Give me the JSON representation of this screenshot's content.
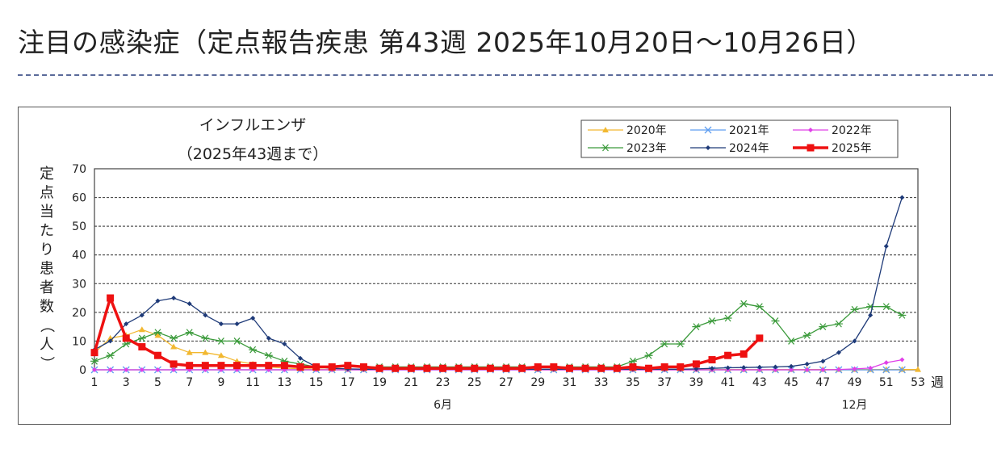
{
  "page": {
    "title": "注目の感染症（定点報告疾患 第43週 2025年10月20日〜10月26日）"
  },
  "chart_data": {
    "type": "line",
    "title": "インフルエンザ",
    "subtitle": "（2025年43週まで）",
    "ylabel": "定点当たり患者数（人）",
    "xlabel": "週",
    "ylim": [
      0,
      70
    ],
    "yticks": [
      0,
      10,
      20,
      30,
      40,
      50,
      60,
      70
    ],
    "xlim": [
      1,
      53
    ],
    "xticks": [
      1,
      3,
      5,
      7,
      9,
      11,
      13,
      15,
      17,
      19,
      21,
      23,
      25,
      27,
      29,
      31,
      33,
      35,
      37,
      39,
      41,
      43,
      45,
      47,
      49,
      51,
      53
    ],
    "month_labels": [
      {
        "week": 23,
        "label": "6月"
      },
      {
        "week": 49,
        "label": "12月"
      }
    ],
    "grid": "horizontal-dashed",
    "legend_position": "top-right",
    "series": [
      {
        "name": "2020年",
        "color": "#f2b830",
        "marker": "triangle",
        "x": [
          1,
          2,
          3,
          4,
          5,
          6,
          7,
          8,
          9,
          10,
          11,
          12,
          13,
          14,
          15,
          16,
          17,
          18,
          19,
          20,
          21,
          22,
          23,
          24,
          25,
          26,
          27,
          28,
          29,
          30,
          31,
          32,
          33,
          34,
          35,
          36,
          37,
          38,
          39,
          40,
          41,
          42,
          43,
          44,
          45,
          46,
          47,
          48,
          49,
          50,
          51,
          52,
          53
        ],
        "values": [
          6,
          11,
          12,
          14,
          12,
          8,
          6,
          6,
          5,
          3,
          2,
          1,
          0.6,
          0.3,
          0.2,
          0.1,
          0.1,
          0.1,
          0.1,
          0.1,
          0.1,
          0.1,
          0.1,
          0.1,
          0.1,
          0.1,
          0.1,
          0.1,
          0.1,
          0.1,
          0.1,
          0.1,
          0.1,
          0.1,
          0.1,
          0.1,
          0.1,
          0.1,
          0.1,
          0.1,
          0.1,
          0.1,
          0.1,
          0.1,
          0.1,
          0.1,
          0.1,
          0.1,
          0.1,
          0.1,
          0.1,
          0.1,
          0.1
        ]
      },
      {
        "name": "2021年",
        "color": "#5f9ef0",
        "marker": "x",
        "x": [
          1,
          2,
          3,
          4,
          5,
          6,
          7,
          8,
          9,
          10,
          11,
          12,
          13,
          14,
          15,
          16,
          17,
          18,
          19,
          20,
          21,
          22,
          23,
          24,
          25,
          26,
          27,
          28,
          29,
          30,
          31,
          32,
          33,
          34,
          35,
          36,
          37,
          38,
          39,
          40,
          41,
          42,
          43,
          44,
          45,
          46,
          47,
          48,
          49,
          50,
          51,
          52
        ],
        "values": [
          0,
          0,
          0,
          0,
          0,
          0,
          0,
          0,
          0,
          0,
          0,
          0,
          0,
          0,
          0,
          0,
          0,
          0,
          0,
          0,
          0,
          0,
          0,
          0,
          0,
          0,
          0,
          0,
          0,
          0,
          0,
          0,
          0,
          0,
          0,
          0,
          0,
          0,
          0,
          0,
          0,
          0,
          0,
          0,
          0,
          0,
          0,
          0,
          0,
          0,
          0,
          0
        ]
      },
      {
        "name": "2022年",
        "color": "#e040e8",
        "marker": "diamond",
        "x": [
          1,
          2,
          3,
          4,
          5,
          6,
          7,
          8,
          9,
          10,
          11,
          12,
          13,
          14,
          15,
          16,
          17,
          18,
          19,
          20,
          21,
          22,
          23,
          24,
          25,
          26,
          27,
          28,
          29,
          30,
          31,
          32,
          33,
          34,
          35,
          36,
          37,
          38,
          39,
          40,
          41,
          42,
          43,
          44,
          45,
          46,
          47,
          48,
          49,
          50,
          51,
          52
        ],
        "values": [
          0,
          0,
          0,
          0,
          0,
          0,
          0,
          0,
          0,
          0,
          0,
          0,
          0,
          0,
          0,
          0,
          0,
          0,
          0,
          0,
          0,
          0,
          0,
          0,
          0,
          0,
          0,
          0,
          0,
          0,
          0,
          0,
          0,
          0,
          0,
          0,
          0,
          0,
          0,
          0,
          0,
          0,
          0,
          0,
          0,
          0,
          0,
          0.1,
          0.3,
          0.6,
          2.5,
          3.5
        ]
      },
      {
        "name": "2023年",
        "color": "#3a9a3a",
        "marker": "asterisk",
        "x": [
          1,
          2,
          3,
          4,
          5,
          6,
          7,
          8,
          9,
          10,
          11,
          12,
          13,
          14,
          15,
          16,
          17,
          18,
          19,
          20,
          21,
          22,
          23,
          24,
          25,
          26,
          27,
          28,
          29,
          30,
          31,
          32,
          33,
          34,
          35,
          36,
          37,
          38,
          39,
          40,
          41,
          42,
          43,
          44,
          45,
          46,
          47,
          48,
          49,
          50,
          51,
          52
        ],
        "values": [
          3,
          5,
          9,
          11,
          13,
          11,
          13,
          11,
          10,
          10,
          7,
          5,
          3,
          2,
          1,
          1,
          1,
          1,
          1,
          1,
          1,
          1,
          1,
          1,
          1,
          1,
          1,
          1,
          1,
          1,
          1,
          1,
          1,
          1,
          3,
          5,
          9,
          9,
          15,
          17,
          18,
          23,
          22,
          17,
          10,
          12,
          15,
          16,
          21,
          22,
          22,
          19
        ]
      },
      {
        "name": "2024年",
        "color": "#1e3a78",
        "marker": "diamond",
        "x": [
          1,
          2,
          3,
          4,
          5,
          6,
          7,
          8,
          9,
          10,
          11,
          12,
          13,
          14,
          15,
          16,
          17,
          18,
          19,
          20,
          21,
          22,
          23,
          24,
          25,
          26,
          27,
          28,
          29,
          30,
          31,
          32,
          33,
          34,
          35,
          36,
          37,
          38,
          39,
          40,
          41,
          42,
          43,
          44,
          45,
          46,
          47,
          48,
          49,
          50,
          51,
          52
        ],
        "values": [
          7,
          10,
          16,
          19,
          24,
          25,
          23,
          19,
          16,
          16,
          18,
          11,
          9,
          4,
          1,
          0.5,
          0.3,
          0.2,
          0.2,
          0.2,
          0.2,
          0.2,
          0.2,
          0.2,
          0.2,
          0.2,
          0.2,
          0.2,
          0.2,
          0.2,
          0.2,
          0.2,
          0.2,
          0.2,
          0.2,
          0.2,
          0.2,
          0.2,
          0.3,
          0.5,
          0.7,
          0.8,
          0.9,
          1,
          1.2,
          2,
          3,
          6,
          10,
          19,
          43,
          60
        ]
      },
      {
        "name": "2025年",
        "color": "#ee1111",
        "marker": "square",
        "x": [
          1,
          2,
          3,
          4,
          5,
          6,
          7,
          8,
          9,
          10,
          11,
          12,
          13,
          14,
          15,
          16,
          17,
          18,
          19,
          20,
          21,
          22,
          23,
          24,
          25,
          26,
          27,
          28,
          29,
          30,
          31,
          32,
          33,
          34,
          35,
          36,
          37,
          38,
          39,
          40,
          41,
          42,
          43
        ],
        "values": [
          6,
          25,
          11,
          8,
          5,
          2,
          1.5,
          1.5,
          1.5,
          1.5,
          1.5,
          1.5,
          1.5,
          1,
          1,
          1,
          1.5,
          1,
          0.5,
          0.5,
          0.5,
          0.5,
          0.5,
          0.5,
          0.5,
          0.5,
          0.5,
          0.5,
          1,
          1,
          0.5,
          0.5,
          0.5,
          0.5,
          1,
          0.5,
          1,
          1,
          2,
          3.5,
          5,
          5.5,
          11
        ]
      }
    ]
  }
}
